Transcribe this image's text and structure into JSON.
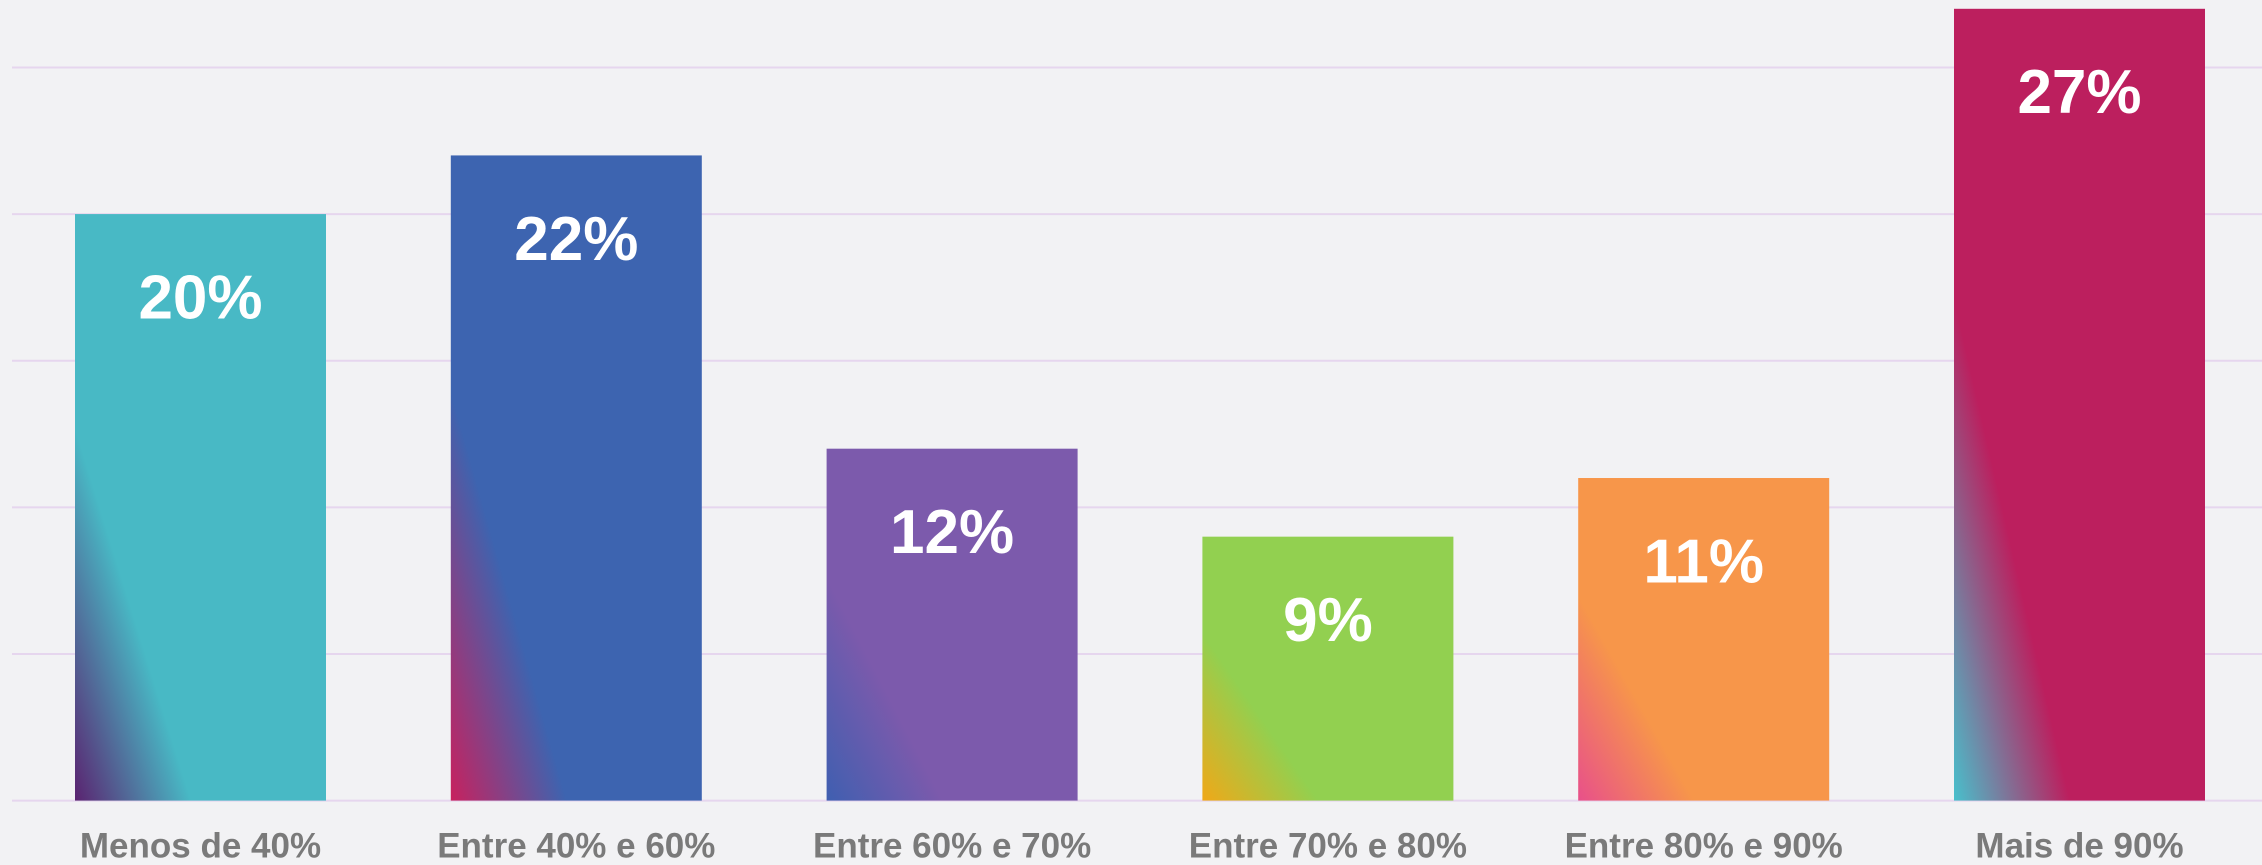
{
  "chart_data": {
    "type": "bar",
    "categories": [
      "Menos de 40%",
      "Entre 40% e 60%",
      "Entre 60% e 70%",
      "Entre 70% e 80%",
      "Entre 80% e 90%",
      "Mais de 90%"
    ],
    "values": [
      20,
      22,
      12,
      9,
      11,
      27
    ],
    "value_labels": [
      "20%",
      "22%",
      "12%",
      "9%",
      "11%",
      "27%"
    ],
    "colors": [
      "#48b9c5",
      "#3d64b0",
      "#7c5aac",
      "#92d050",
      "#f7964a",
      "#bc1f5e"
    ],
    "accent_colors": [
      "#5a2370",
      "#c8215e",
      "#3f5fb0",
      "#f0a818",
      "#e8508a",
      "#48c0cc"
    ],
    "ylim": [
      0,
      27.3
    ],
    "yticks": [
      0,
      5,
      10,
      15,
      20,
      25
    ],
    "grid": true
  }
}
